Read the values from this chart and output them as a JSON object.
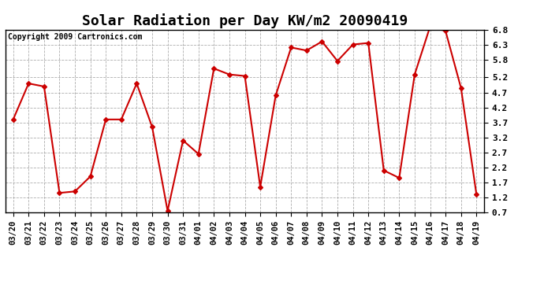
{
  "title": "Solar Radiation per Day KW/m2 20090419",
  "copyright": "Copyright 2009 Cartronics.com",
  "dates": [
    "03/20",
    "03/21",
    "03/22",
    "03/23",
    "03/24",
    "03/25",
    "03/26",
    "03/27",
    "03/28",
    "03/29",
    "03/30",
    "03/31",
    "04/01",
    "04/02",
    "04/03",
    "04/04",
    "04/05",
    "04/06",
    "04/07",
    "04/08",
    "04/09",
    "04/10",
    "04/11",
    "04/12",
    "04/13",
    "04/14",
    "04/15",
    "04/16",
    "04/17",
    "04/18",
    "04/19"
  ],
  "values": [
    3.8,
    5.0,
    4.9,
    1.35,
    1.4,
    1.9,
    3.8,
    3.8,
    5.0,
    3.55,
    0.75,
    3.1,
    2.65,
    5.5,
    5.3,
    5.25,
    1.55,
    4.6,
    6.2,
    6.1,
    6.4,
    5.75,
    6.3,
    6.35,
    2.1,
    1.85,
    5.3,
    6.9,
    6.75,
    4.85,
    1.3
  ],
  "line_color": "#cc0000",
  "marker": "D",
  "marker_size": 3,
  "ylim": [
    0.7,
    6.8
  ],
  "yticks": [
    0.7,
    1.2,
    1.7,
    2.2,
    2.7,
    3.2,
    3.7,
    4.2,
    4.7,
    5.2,
    5.8,
    6.3,
    6.8
  ],
  "background_color": "#ffffff",
  "grid_color": "#999999",
  "title_fontsize": 13,
  "copyright_fontsize": 7,
  "tick_fontsize": 7.5
}
